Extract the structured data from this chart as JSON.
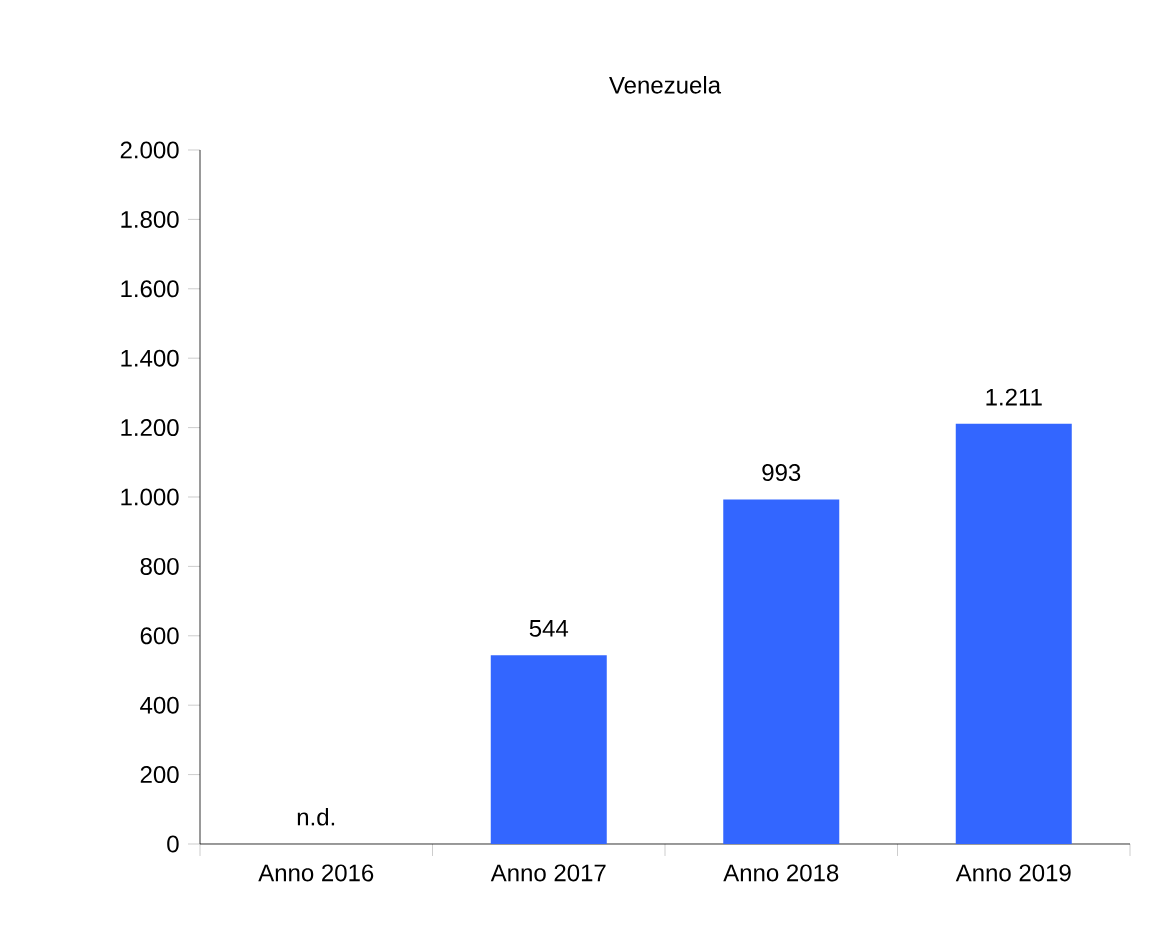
{
  "chart_data": {
    "type": "bar",
    "title": "Venezuela",
    "categories": [
      "Anno 2016",
      "Anno 2017",
      "Anno 2018",
      "Anno 2019"
    ],
    "values": [
      null,
      544,
      993,
      1211
    ],
    "value_labels": [
      "n.d.",
      "544",
      "993",
      "1.211"
    ],
    "color": "#3366ff",
    "ylim": [
      0,
      2000
    ],
    "yticks": [
      {
        "value": 0,
        "label": "0"
      },
      {
        "value": 200,
        "label": "200"
      },
      {
        "value": 400,
        "label": "400"
      },
      {
        "value": 600,
        "label": "600"
      },
      {
        "value": 800,
        "label": "800"
      },
      {
        "value": 1000,
        "label": "1.000"
      },
      {
        "value": 1200,
        "label": "1.200"
      },
      {
        "value": 1400,
        "label": "1.400"
      },
      {
        "value": 1600,
        "label": "1.600"
      },
      {
        "value": 1800,
        "label": "1.800"
      },
      {
        "value": 2000,
        "label": "2.000"
      }
    ]
  }
}
